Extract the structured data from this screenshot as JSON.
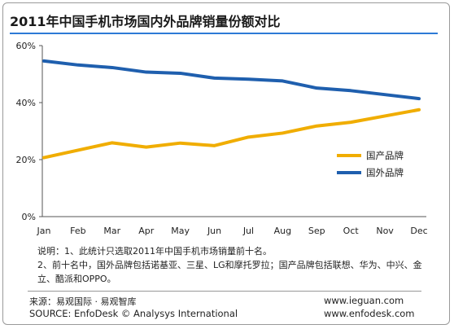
{
  "title": "2011年中国手机市场国内外品牌销量份额对比",
  "chart_data": {
    "type": "line",
    "categories": [
      "Jan",
      "Feb",
      "Mar",
      "Apr",
      "May",
      "Jun",
      "Jul",
      "Aug",
      "Sep",
      "Oct",
      "Nov",
      "Dec"
    ],
    "y_ticks": [
      "0%",
      "20%",
      "40%",
      "60%"
    ],
    "ylim": [
      0,
      60
    ],
    "grid": false,
    "legend_position": "right",
    "series": [
      {
        "name": "国产品牌",
        "color": "#f0ad00",
        "values": [
          20.7,
          23.3,
          25.9,
          24.4,
          25.8,
          24.9,
          27.9,
          29.3,
          31.8,
          33.1,
          35.3,
          37.5
        ]
      },
      {
        "name": "国外品牌",
        "color": "#1f5fae",
        "values": [
          54.6,
          53.2,
          52.3,
          50.7,
          50.3,
          48.6,
          48.2,
          47.6,
          45.1,
          44.2,
          42.8,
          41.4
        ]
      }
    ]
  },
  "notes": {
    "line1": "说明：1、此统计只选取2011年中国手机市场销量前十名。",
    "line2": "2、前十名中，国外品牌包括诺基亚、三星、LG和摩托罗拉；国产品牌包括联想、华为、中兴、金",
    "line3": "立、酷派和OPPO。"
  },
  "source": {
    "cn": "来源：易观国际 · 易观智库",
    "en": "SOURCE: EnfoDesk © Analysys International",
    "url1": "www.ieguan.com",
    "url2": "www.enfodesk.com"
  }
}
